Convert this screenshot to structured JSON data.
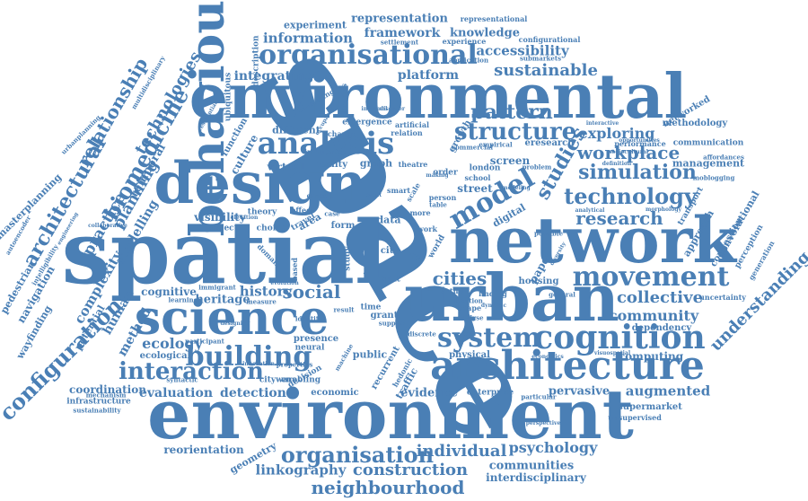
{
  "word_cloud": {
    "color": "#4a7fb5",
    "words": {
      "space": "space",
      "spatial": "spatial",
      "environmental": "environmental",
      "environment": "environment",
      "design": "design",
      "network": "network",
      "urban": "urban",
      "behaviour": "behaviour",
      "architecture": "architecture",
      "science": "science",
      "cognition": "cognition",
      "analysis": "analysis",
      "organisational": "organisational",
      "movement": "movement",
      "model": "model",
      "building": "building",
      "system": "system",
      "structure": "structure",
      "technology": "technology",
      "interaction": "interaction",
      "configuration": "configuration",
      "organisation": "organisation",
      "biomedicine": "biomedicine",
      "architectural": "architectural",
      "relationship": "relationship",
      "studies": "studies",
      "simulation": "simulation",
      "workplace": "workplace",
      "research": "research",
      "cities": "cities",
      "social": "social",
      "understanding": "understanding",
      "collective": "collective",
      "community": "community",
      "neighbourhood": "neighbourhood",
      "construction": "construction",
      "individual": "individual",
      "psychology": "psychology",
      "linkography": "linkography",
      "augmented": "augmented",
      "evidence": "evidence",
      "pervasive": "pervasive",
      "detection": "detection",
      "evaluation": "evaluation",
      "ecology": "ecology",
      "history": "history",
      "heritage": "heritage",
      "cognitive": "cognitive",
      "visibility": "visibility",
      "pattern": "pattern",
      "sustainable": "sustainable",
      "accessibility": "accessibility",
      "information": "information",
      "framework": "framework",
      "knowledge": "knowledge",
      "representation": "representation",
      "representational": "representational",
      "experiment": "experiment",
      "configurational": "configurational",
      "experience": "experience",
      "integrating": "integrating",
      "platform": "platform",
      "exploring": "exploring",
      "technologies": "technologies",
      "planning": "planning",
      "practice": "practice",
      "complexity": "complexity",
      "modelling": "modelling",
      "temporal": "temporal",
      "human": "human",
      "method": "method",
      "potential": "potential",
      "coordination": "coordination",
      "infrastructure": "infrastructure",
      "sustainability": "sustainability",
      "mechanism": "mechanism",
      "ecological": "ecological",
      "masterplanning": "masterplanning",
      "navigation": "navigation",
      "pedestrian": "pedestrian",
      "wayfinding": "wayfinding",
      "autoencoder": "autoencoder",
      "urbanplanning": "urbanplanning",
      "reorientation": "reorientation",
      "geometry": "geometry",
      "communities": "communities",
      "interdisciplinary": "interdisciplinary",
      "supermarket": "supermarket",
      "unsupervised": "unsupervised",
      "computing": "computing",
      "dependency": "dependency",
      "uncertainty": "uncertainty",
      "management": "management",
      "communication": "communication",
      "methodology": "methodology",
      "networked": "networked",
      "performance": "performance",
      "affordances": "affordances",
      "moblogging": "moblogging",
      "convolutional": "convolutional",
      "congestion": "congestion",
      "perception": "perception",
      "generation": "generation",
      "transport": "transport",
      "approach": "approach",
      "culture": "culture",
      "function": "function",
      "virtual": "virtual",
      "reality": "reality",
      "graph": "graph",
      "different": "different",
      "influence": "influence",
      "cityware": "cityware",
      "decision": "decision",
      "economic": "economic",
      "enabling": "enabling",
      "public": "public",
      "recurrent": "recurrent",
      "hedonic": "hedonic",
      "traffic": "traffic",
      "enterprise": "enterprise",
      "particular": "particular",
      "presence": "presence",
      "neural": "neural",
      "physical": "physical",
      "housing": "housing",
      "grant": "grant",
      "time": "time",
      "city": "city",
      "life": "life",
      "built": "built",
      "paper": "paper",
      "street": "street",
      "screen": "screen",
      "eresearch": "eresearch",
      "digital": "digital",
      "data": "data",
      "area": "area",
      "form": "form",
      "study": "study",
      "more": "more",
      "work": "work",
      "order": "order",
      "person": "person",
      "london": "london",
      "school": "school",
      "description": "description",
      "ubiquitous": "ubiquitous",
      "libraries": "libraries",
      "application": "application",
      "clustering": "clustering",
      "settlement": "settlement",
      "submarkets": "submarkets",
      "emergence": "emergence",
      "artificial": "artificial",
      "relation": "relation",
      "change": "change",
      "empirical": "empirical",
      "growth": "growth",
      "theory": "theory",
      "effect": "effect",
      "choice": "choice",
      "project": "project",
      "travel": "travel",
      "case": "case",
      "domain": "domain",
      "based": "based",
      "measure": "measure",
      "learning": "learning",
      "theatre": "theatre",
      "shape": "shape",
      "analyse": "analyse",
      "finding": "finding",
      "general": "general",
      "arthur": "arthur",
      "world": "world",
      "discrete": "discrete",
      "support": "support",
      "identity": "identity",
      "result": "result",
      "participant": "participant",
      "syntactic": "syntactic",
      "properties": "properties",
      "innovation": "innovation",
      "machine": "machine",
      "immigrant": "immigrant",
      "collaborative": "collaborative",
      "multidisciplinary": "multidisciplinary",
      "residential": "residential",
      "problem": "problem",
      "commercial": "commercial",
      "concept": "concept",
      "definition": "definition",
      "interactive": "interactive",
      "opportunities": "opportunities",
      "sociocultural": "sociocultural",
      "perspective": "perspective",
      "visuospatial": "visuospatial",
      "economics": "economics",
      "possible": "possible",
      "analytical": "analytical",
      "morphology": "morphology",
      "informal": "informal",
      "disorder": "disorder",
      "occupancy": "occupancy",
      "making": "making",
      "scale": "scale",
      "table": "table",
      "smart": "smart",
      "event": "event",
      "modeling": "modeling",
      "location": "location",
      "dynamic": "dynamic",
      "diversity": "diversity",
      "intelligibility": "intelligibility",
      "engineering": "engineering",
      "elevation": "elevation",
      "designing": "designing",
      "evolution": "evolution"
    }
  }
}
